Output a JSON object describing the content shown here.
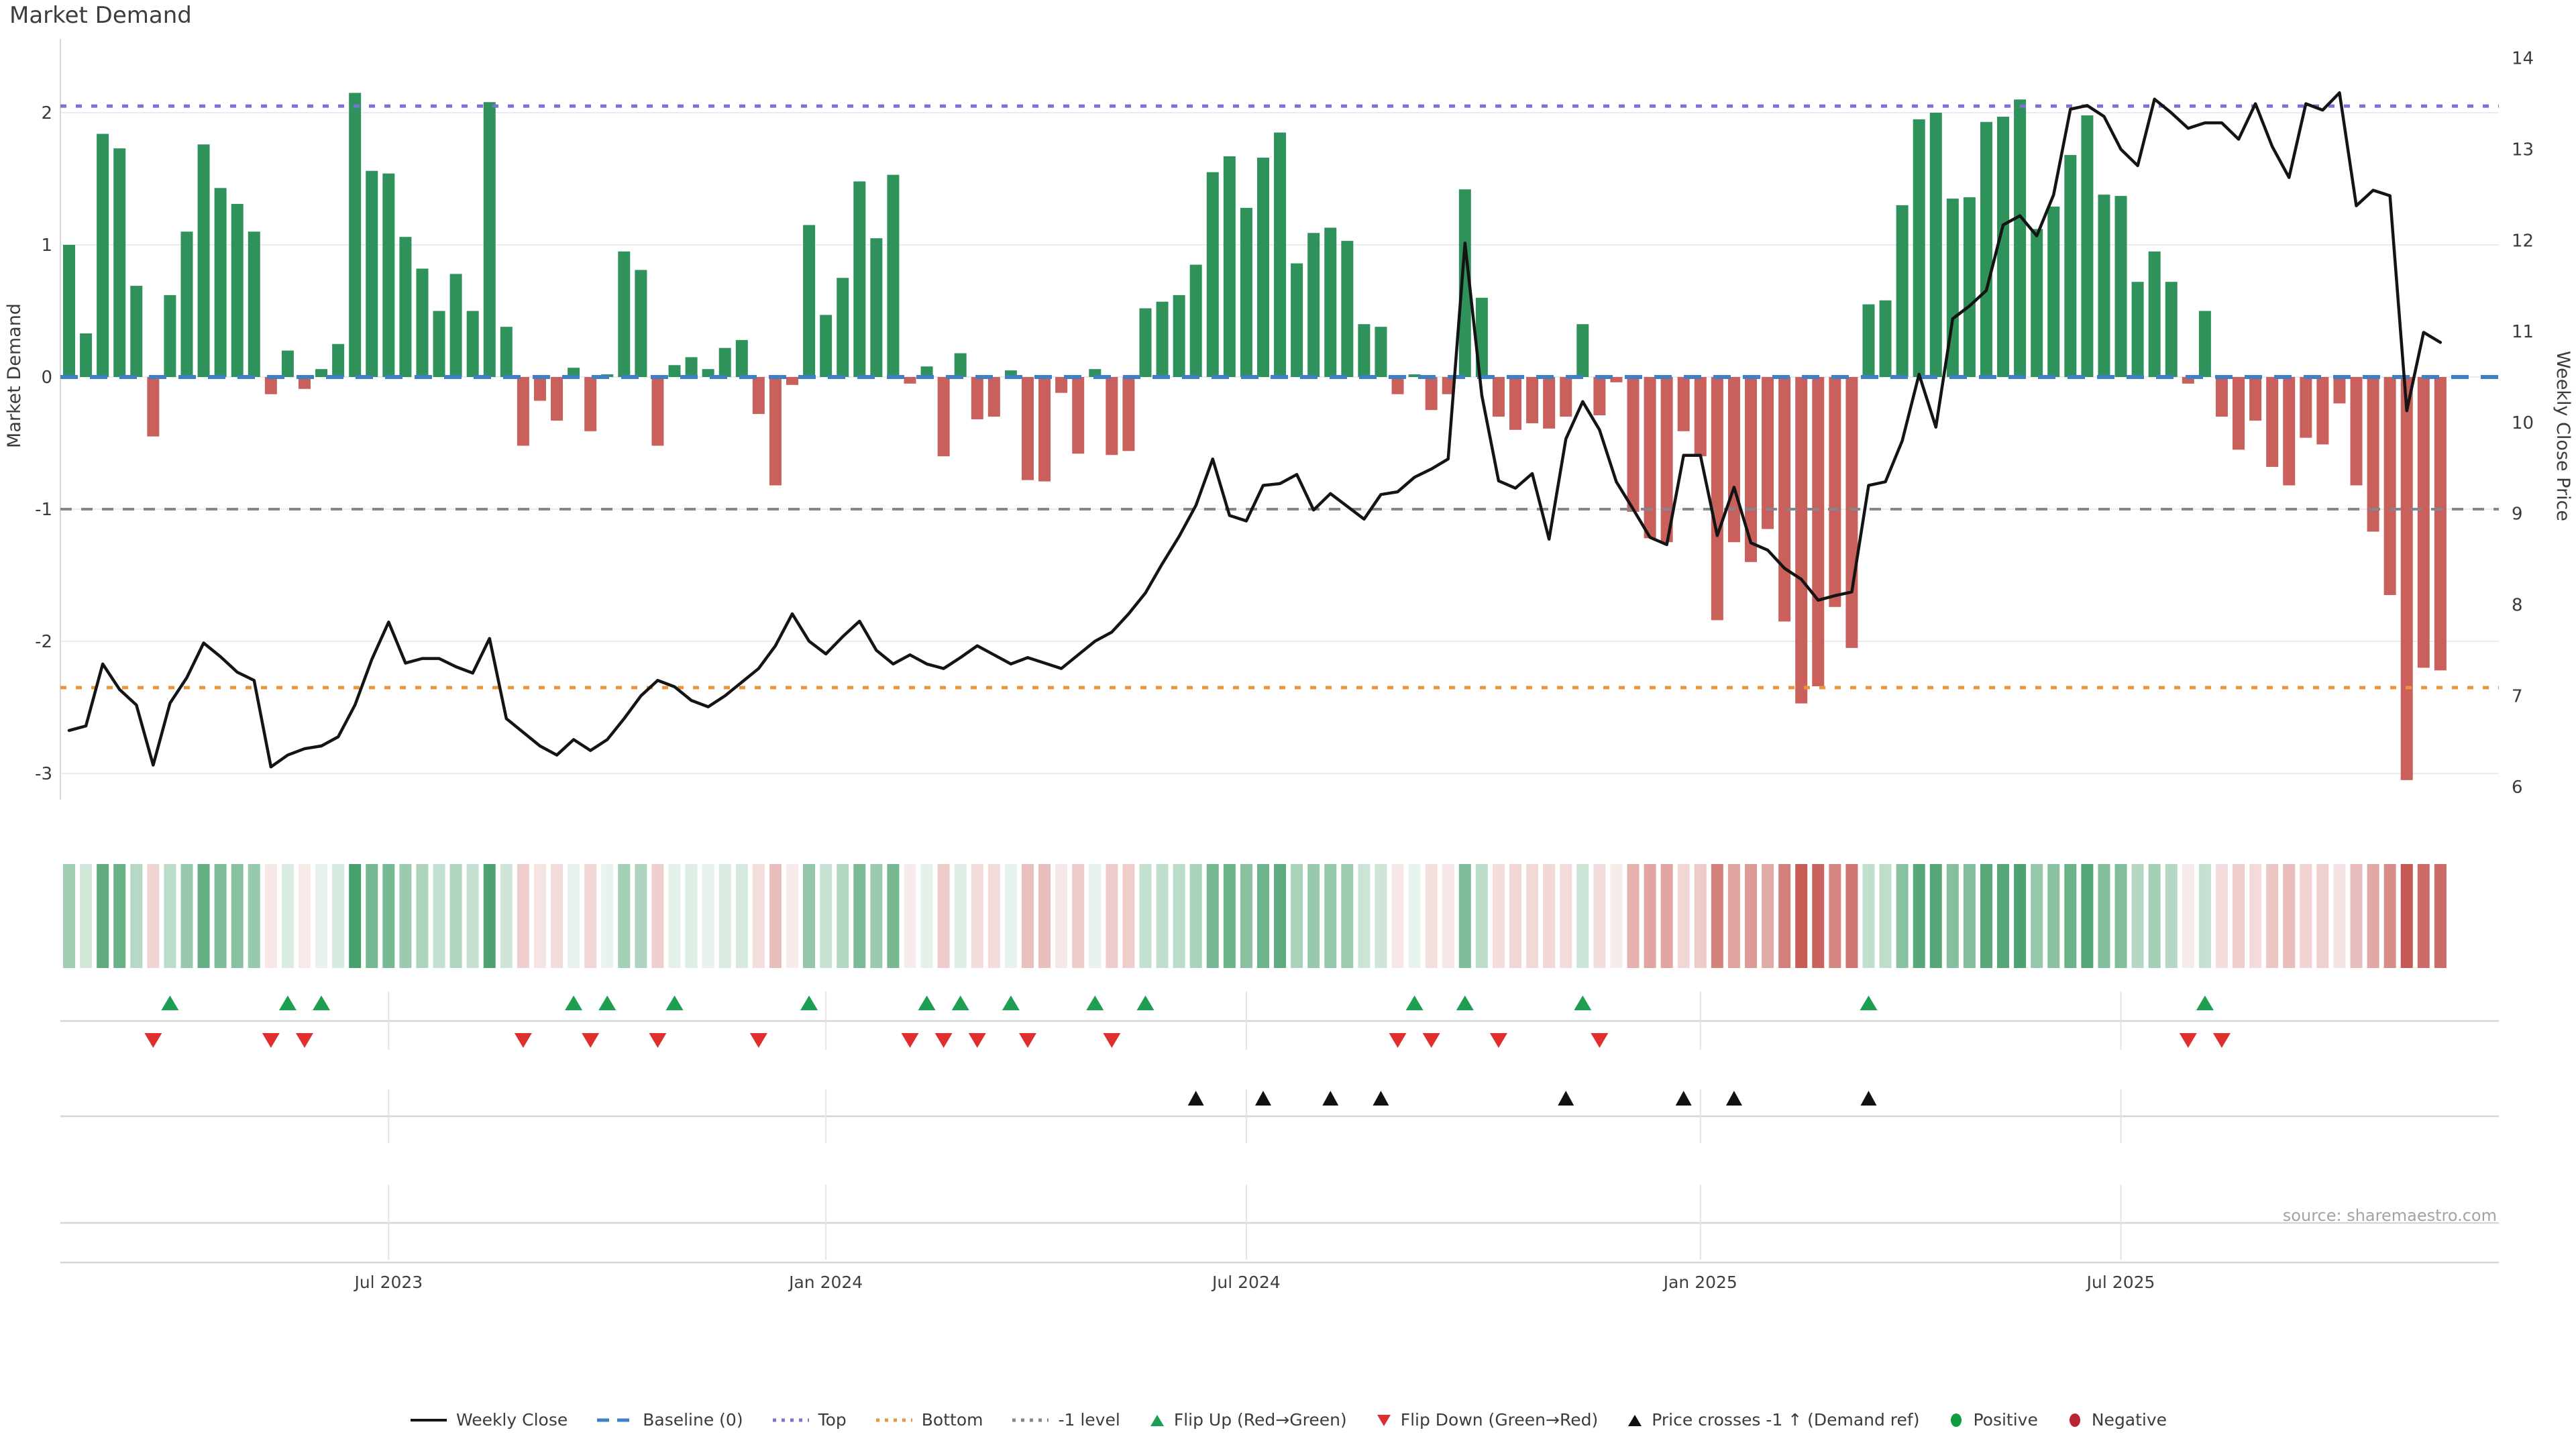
{
  "title": "Market Demand",
  "source": "source: sharemaestro.com",
  "axes": {
    "left_label": "Market Demand",
    "right_label": "Weekly Close Price",
    "left_ticks": [
      2,
      1,
      0,
      -1,
      -2,
      -3
    ],
    "right_ticks": [
      14,
      13,
      12,
      11,
      10,
      9,
      8,
      7,
      6
    ],
    "x_ticks": [
      {
        "label": "Jul 2023",
        "index": 19
      },
      {
        "label": "Jan 2024",
        "index": 45
      },
      {
        "label": "Jul 2024",
        "index": 70
      },
      {
        "label": "Jan 2025",
        "index": 97
      },
      {
        "label": "Jul 2025",
        "index": 122
      }
    ]
  },
  "chart_data": {
    "type": "combo (weekly bar + line overlay + heatmap strip + event-marker lanes)",
    "x_unit": "week",
    "left_range": [
      -3.2,
      2.55
    ],
    "right_range": [
      6,
      14.2
    ],
    "grid": "horizontal light gridlines at left-axis ticks",
    "legend_position": "bottom center",
    "series": [
      {
        "name": "Market Demand",
        "type": "bar",
        "axis": "left",
        "values": [
          1.0,
          0.33,
          1.84,
          1.73,
          0.69,
          -0.45,
          0.62,
          1.1,
          1.76,
          1.43,
          1.31,
          1.1,
          -0.13,
          0.2,
          -0.09,
          0.06,
          0.25,
          2.15,
          1.56,
          1.54,
          1.06,
          0.82,
          0.5,
          0.78,
          0.5,
          2.08,
          0.38,
          -0.52,
          -0.18,
          -0.33,
          0.07,
          -0.41,
          0.02,
          0.95,
          0.81,
          -0.52,
          0.09,
          0.15,
          0.06,
          0.22,
          0.28,
          -0.28,
          -0.82,
          -0.06,
          1.15,
          0.47,
          0.75,
          1.48,
          1.05,
          1.53,
          -0.05,
          0.08,
          -0.6,
          0.18,
          -0.32,
          -0.3,
          0.05,
          -0.78,
          -0.79,
          -0.12,
          -0.58,
          0.06,
          -0.59,
          -0.56,
          0.52,
          0.57,
          0.62,
          0.85,
          1.55,
          1.67,
          1.28,
          1.66,
          1.85,
          0.86,
          1.09,
          1.13,
          1.03,
          0.4,
          0.38,
          -0.13,
          0.02,
          -0.25,
          -0.13,
          1.42,
          0.6,
          -0.3,
          -0.4,
          -0.35,
          -0.39,
          -0.3,
          0.4,
          -0.29,
          -0.04,
          -1.02,
          -1.22,
          -1.25,
          -0.41,
          -0.6,
          -1.84,
          -1.25,
          -1.4,
          -1.15,
          -1.85,
          -2.47,
          -2.34,
          -1.74,
          -2.05,
          0.55,
          0.58,
          1.3,
          1.95,
          2.0,
          1.35,
          1.36,
          1.93,
          1.97,
          2.1,
          1.12,
          1.29,
          1.68,
          1.98,
          1.38,
          1.37,
          0.72,
          0.95,
          0.72,
          -0.05,
          0.5,
          -0.3,
          -0.55,
          -0.33,
          -0.68,
          -0.82,
          -0.46,
          -0.51,
          -0.2,
          -0.82,
          -1.17,
          -1.65,
          -3.05,
          -2.2,
          -2.22
        ]
      },
      {
        "name": "Weekly Close",
        "type": "line",
        "axis": "right",
        "values": [
          6.62,
          6.67,
          7.35,
          7.07,
          6.9,
          6.24,
          6.92,
          7.2,
          7.58,
          7.43,
          7.26,
          7.17,
          6.22,
          6.35,
          6.42,
          6.45,
          6.55,
          6.9,
          7.4,
          7.81,
          7.36,
          7.41,
          7.41,
          7.32,
          7.25,
          7.63,
          6.75,
          6.6,
          6.45,
          6.35,
          6.52,
          6.4,
          6.52,
          6.75,
          7.0,
          7.17,
          7.1,
          6.95,
          6.88,
          7.0,
          7.15,
          7.3,
          7.55,
          7.9,
          7.6,
          7.46,
          7.65,
          7.82,
          7.5,
          7.35,
          7.45,
          7.35,
          7.3,
          7.42,
          7.55,
          7.45,
          7.35,
          7.42,
          7.36,
          7.3,
          7.45,
          7.6,
          7.7,
          7.9,
          8.13,
          8.45,
          8.75,
          9.09,
          9.6,
          8.98,
          8.92,
          9.31,
          9.33,
          9.43,
          9.04,
          9.22,
          9.08,
          8.94,
          9.21,
          9.24,
          9.4,
          9.49,
          9.6,
          11.97,
          10.3,
          9.36,
          9.28,
          9.44,
          8.72,
          9.82,
          10.23,
          9.92,
          9.35,
          9.05,
          8.74,
          8.66,
          9.64,
          9.64,
          8.76,
          9.29,
          8.68,
          8.6,
          8.4,
          8.28,
          8.05,
          8.1,
          8.14,
          9.31,
          9.35,
          9.8,
          10.53,
          9.95,
          11.14,
          11.28,
          11.45,
          12.17,
          12.27,
          12.05,
          12.5,
          13.44,
          13.48,
          13.36,
          13.0,
          12.82,
          13.55,
          13.4,
          13.23,
          13.29,
          13.29,
          13.11,
          13.5,
          13.03,
          12.69,
          13.5,
          13.43,
          13.62,
          12.38,
          12.55,
          12.49,
          10.13,
          10.99,
          10.88
        ]
      }
    ],
    "ref_lines": {
      "baseline": 0,
      "top": 2.05,
      "bottom": -2.35,
      "minus1_level": -1
    },
    "markers": {
      "flip_up_idx": [
        6,
        13,
        15,
        30,
        32,
        36,
        44,
        51,
        53,
        56,
        61,
        64,
        80,
        83,
        90,
        107,
        127
      ],
      "flip_down_idx": [
        5,
        12,
        14,
        27,
        31,
        35,
        41,
        50,
        52,
        54,
        57,
        62,
        79,
        81,
        85,
        91,
        126,
        128
      ],
      "price_cross_up_idx": [
        67,
        71,
        75,
        78,
        89,
        96,
        99,
        107
      ]
    },
    "heatmap_strip": "one cell per week, tint intensity proportional to |Market Demand|, green = positive, red = negative"
  },
  "legend": {
    "items": [
      {
        "label": "Weekly Close",
        "glyph": "line-black"
      },
      {
        "label": "Baseline (0)",
        "glyph": "dash-blue"
      },
      {
        "label": "Top",
        "glyph": "dots-purple"
      },
      {
        "label": "Bottom",
        "glyph": "dots-orange"
      },
      {
        "label": "-1 level",
        "glyph": "dots-gray"
      },
      {
        "label": "Flip Up (Red→Green)",
        "glyph": "tri-up-green"
      },
      {
        "label": "Flip Down (Green→Red)",
        "glyph": "tri-down-red"
      },
      {
        "label": "Price crosses -1 ↑ (Demand ref)",
        "glyph": "tri-up-black"
      },
      {
        "label": "Positive",
        "glyph": "dot-green"
      },
      {
        "label": "Negative",
        "glyph": "dot-red"
      }
    ]
  },
  "colors": {
    "bar_positive": "#2f925a",
    "bar_negative": "#c9605c",
    "price_line": "#141414",
    "baseline": "#3f7fc4",
    "top_line": "#7b72d8",
    "bottom_line": "#e8953c",
    "minus1_line": "#85858d",
    "flip_up_marker": "#1d9e51",
    "flip_down_marker": "#df2e2e",
    "cross_marker": "#111111",
    "positive_dot": "#0f9d3f",
    "negative_dot": "#bb2433",
    "gridline": "#ebebf0",
    "lane_line": "#d5d5da",
    "tick_text": "#3a3a3a",
    "source_text": "#a3a3a3"
  }
}
